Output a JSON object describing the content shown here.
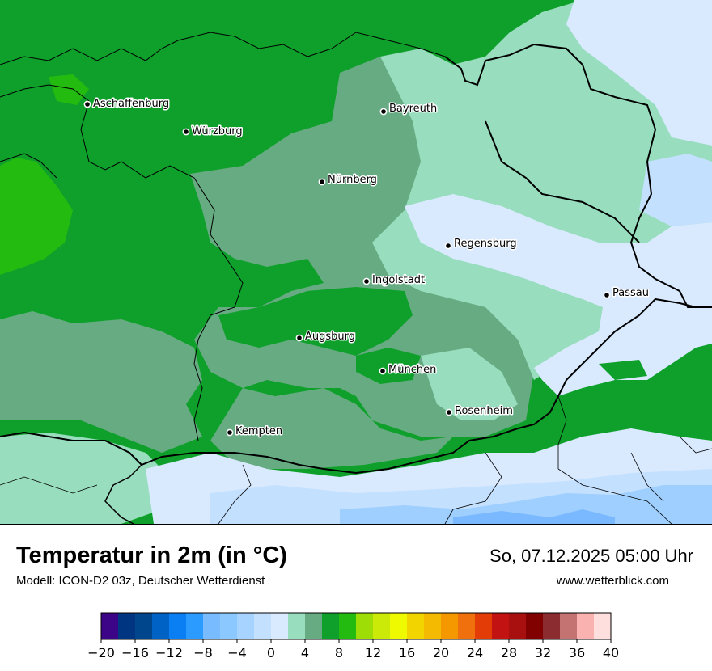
{
  "map": {
    "colors": {
      "green_dark": "#0ea02a",
      "green_bright": "#23bb10",
      "green_gray": "#66ab82",
      "mint": "#98ddbd",
      "light_blue": "#d9eaff",
      "pale_blue": "#c4e0ff",
      "sky_blue": "#9fcfff",
      "blue": "#7ab9ff",
      "border": "#000000"
    },
    "cities": [
      {
        "name": "Aschaffenburg"
      },
      {
        "name": "Würzburg"
      },
      {
        "name": "Bayreuth"
      },
      {
        "name": "Nürnberg"
      },
      {
        "name": "Regensburg"
      },
      {
        "name": "Ingolstadt"
      },
      {
        "name": "Passau"
      },
      {
        "name": "Augsburg"
      },
      {
        "name": "München"
      },
      {
        "name": "Rosenheim"
      },
      {
        "name": "Kempten"
      }
    ]
  },
  "header": {
    "title": "Temperatur in 2m (in °C)",
    "model": "Modell: ICON-D2 03z, Deutscher Wetterdienst",
    "datetime": "So, 07.12.2025 05:00 Uhr",
    "website": "www.wetterblick.com"
  },
  "legend": {
    "tick_labels": [
      "−20",
      "−16",
      "−12",
      "−8",
      "−4",
      "0",
      "4",
      "8",
      "12",
      "16",
      "20",
      "24",
      "28",
      "32",
      "36",
      "40"
    ],
    "colors": [
      "#3c0487",
      "#003581",
      "#00468d",
      "#0062c4",
      "#0a7ff3",
      "#2b9bff",
      "#79bbff",
      "#8ac8ff",
      "#a6d3ff",
      "#c4e0ff",
      "#d9eaff",
      "#98ddbd",
      "#66ab82",
      "#0ea02a",
      "#23bb10",
      "#9fdd07",
      "#cbea07",
      "#effa00",
      "#f2d500",
      "#f4b901",
      "#f59800",
      "#ef700c",
      "#e43c07",
      "#c21212",
      "#a8100f",
      "#810000",
      "#8b2d30",
      "#c47372",
      "#fab2b0",
      "#ffdede"
    ]
  }
}
